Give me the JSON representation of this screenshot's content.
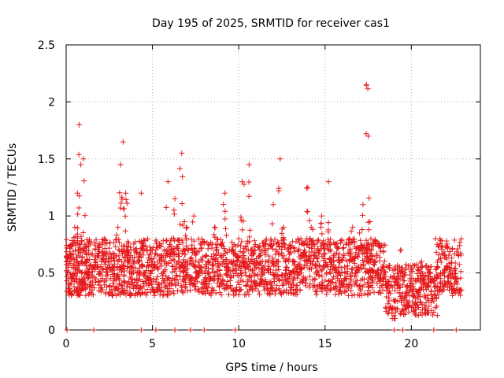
{
  "chart_data": {
    "type": "scatter",
    "title": "Day 195 of 2025, SRMTID for receiver cas1",
    "xlabel": "GPS time / hours",
    "ylabel": "SRMTID / TECUs",
    "xlim": [
      0,
      24
    ],
    "ylim": [
      0,
      2.5
    ],
    "xticks": [
      0,
      5,
      10,
      15,
      20
    ],
    "xtick_labels": [
      "0",
      "5",
      "10",
      "15",
      "20"
    ],
    "yticks": [
      0,
      0.5,
      1,
      1.5,
      2,
      2.5
    ],
    "ytick_labels": [
      "0",
      "0.5",
      "1",
      "1.5",
      "2",
      "2.5"
    ],
    "grid": true,
    "marker": "+",
    "series": [
      {
        "name": "SRMTID",
        "color": "#e41a1c",
        "x": [
          0.05,
          0.2,
          0.35,
          0.5,
          0.65,
          0.75,
          0.85,
          1.0,
          1.1,
          1.25,
          1.4,
          1.6,
          1.8,
          2.0,
          2.2,
          2.4,
          2.6,
          2.8,
          3.0,
          3.15,
          3.3,
          3.45,
          3.6,
          3.8,
          4.0,
          4.2,
          4.35,
          4.5,
          4.7,
          4.9,
          5.1,
          5.3,
          5.5,
          5.7,
          5.9,
          6.1,
          6.3,
          6.5,
          6.7,
          6.85,
          7.0,
          7.2,
          7.4,
          7.6,
          7.8,
          8.0,
          8.2,
          8.4,
          8.6,
          8.8,
          9.0,
          9.2,
          9.4,
          9.6,
          9.8,
          10.0,
          10.2,
          10.4,
          10.6,
          10.8,
          11.0,
          11.2,
          11.4,
          11.6,
          11.8,
          12.0,
          12.2,
          12.4,
          12.6,
          12.8,
          13.0,
          13.2,
          13.4,
          13.6,
          13.8,
          14.0,
          14.2,
          14.4,
          14.6,
          14.8,
          15.0,
          15.2,
          15.4,
          15.6,
          15.8,
          16.0,
          16.2,
          16.4,
          16.6,
          16.8,
          17.0,
          17.2,
          17.4,
          17.5,
          17.6,
          17.8,
          18.0,
          18.2,
          18.4,
          18.6,
          18.8,
          19.0,
          19.2,
          19.4,
          19.6,
          19.8,
          20.0,
          20.2,
          20.4,
          20.6,
          20.8,
          21.0,
          21.2,
          21.4,
          21.6,
          21.8,
          22.0,
          22.2,
          22.4,
          22.6,
          22.8
        ],
        "y": [
          0.65,
          0.6,
          0.45,
          0.9,
          1.2,
          1.8,
          1.45,
          1.5,
          0.6,
          0.5,
          0.4,
          0.55,
          0.65,
          0.5,
          0.8,
          0.55,
          0.6,
          0.45,
          0.9,
          1.45,
          1.65,
          1.2,
          0.6,
          0.55,
          0.7,
          0.6,
          1.2,
          0.5,
          0.45,
          0.7,
          0.55,
          0.4,
          0.65,
          0.6,
          1.3,
          0.7,
          1.15,
          0.6,
          1.55,
          0.95,
          0.9,
          0.45,
          1.0,
          0.5,
          0.55,
          0.4,
          0.5,
          0.45,
          0.9,
          0.6,
          0.75,
          1.2,
          0.55,
          0.7,
          0.65,
          0.8,
          1.3,
          0.6,
          1.45,
          0.7,
          0.55,
          0.65,
          0.5,
          0.4,
          0.75,
          1.1,
          0.6,
          1.5,
          0.9,
          0.55,
          0.5,
          0.6,
          0.35,
          0.8,
          0.7,
          1.25,
          0.9,
          0.65,
          0.7,
          1.0,
          0.75,
          1.3,
          0.6,
          0.55,
          0.5,
          0.4,
          0.45,
          0.8,
          0.9,
          0.55,
          0.85,
          1.1,
          2.15,
          1.7,
          0.95,
          0.6,
          0.5,
          0.45,
          0.55,
          0.4,
          0.2,
          0.1,
          0.45,
          0.7,
          0.5,
          0.35,
          0.45,
          0.3,
          0.55,
          0.6,
          0.4,
          0.15,
          0.45,
          0.8,
          0.35,
          0.5,
          0.4,
          0.55,
          0.35,
          0.45,
          0.35
        ],
        "values_at_zero_x": [
          0.05,
          1.6,
          4.35,
          5.2,
          6.3,
          7.2,
          8.0,
          9.8,
          19.0,
          19.5,
          21.3,
          22.6
        ]
      }
    ]
  }
}
